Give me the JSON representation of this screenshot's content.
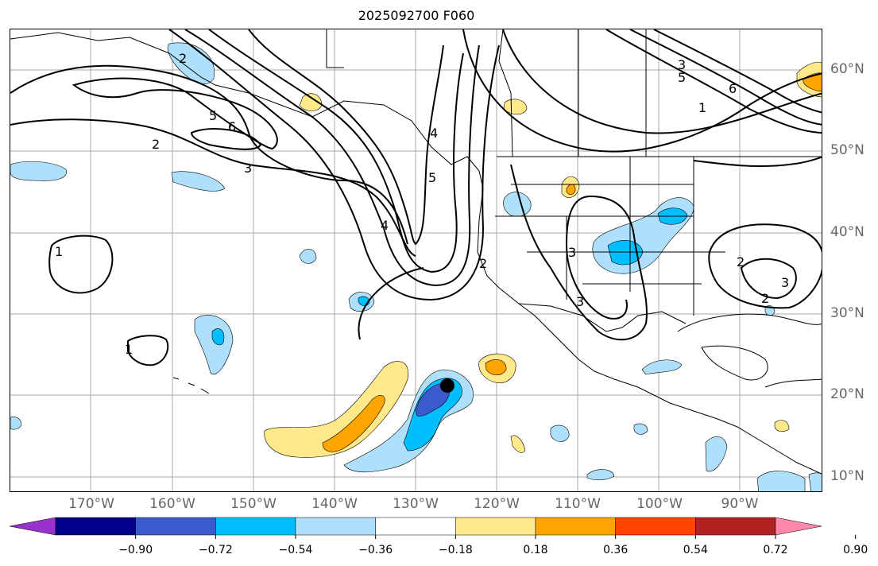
{
  "title": "2025092700 F060",
  "lon_labels": [
    "170°W",
    "160°W",
    "150°W",
    "140°W",
    "130°W",
    "120°W",
    "110°W",
    "100°W",
    "90°W"
  ],
  "lat_labels": [
    "60°N",
    "50°N",
    "40°N",
    "30°N",
    "20°N",
    "10°N"
  ],
  "contour_labels": [
    "2",
    "5",
    "6",
    "3",
    "4",
    "5",
    "1",
    "1",
    "2",
    "3",
    "1",
    "5",
    "6",
    "3",
    "3",
    "2",
    "3",
    "2",
    "2",
    "4"
  ],
  "marker": {
    "name": "storm-center-dot",
    "color": "#000000"
  },
  "colorbar": {
    "ticks": [
      "−0.90",
      "−0.72",
      "−0.54",
      "−0.36",
      "−0.18",
      "0.18",
      "0.36",
      "0.54",
      "0.72",
      "0.90"
    ],
    "colors": [
      "#9932cc",
      "#00008b",
      "#3a5bcc",
      "#00bfff",
      "#aee0fb",
      "#ffffff",
      "#ffe98a",
      "#ffa500",
      "#ff4500",
      "#b22222",
      "#ff88aa"
    ]
  }
}
